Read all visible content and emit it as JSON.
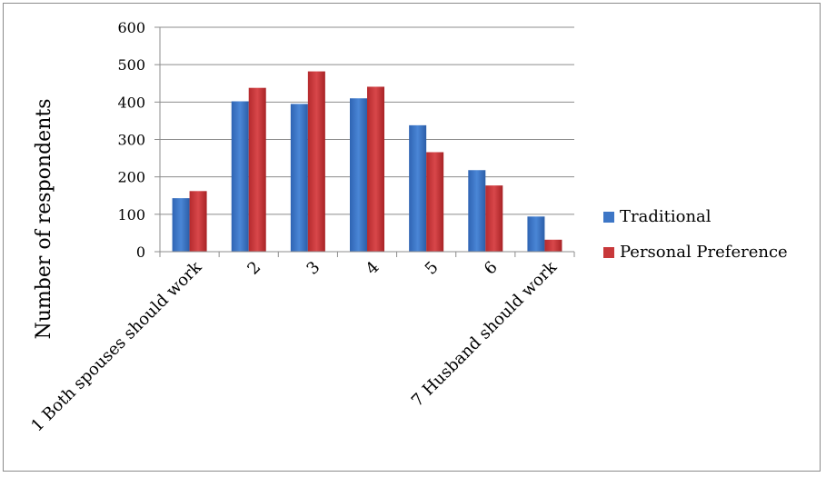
{
  "chart_data": {
    "type": "bar",
    "ylabel": "Number of respondents",
    "ylim": [
      0,
      600
    ],
    "yticks": [
      0,
      100,
      200,
      300,
      400,
      500,
      600
    ],
    "grid": true,
    "legend_position": "right",
    "categories": [
      "1 Both spouses should work",
      "2",
      "3",
      "4",
      "5",
      "6",
      "7 Husband should work"
    ],
    "series": [
      {
        "name": "Traditional",
        "color": "#3d76c6",
        "values": [
          143,
          402,
          395,
          410,
          338,
          218,
          94
        ]
      },
      {
        "name": "Personal Preference",
        "color": "#c8383a",
        "values": [
          162,
          438,
          482,
          441,
          266,
          177,
          32
        ]
      }
    ]
  }
}
